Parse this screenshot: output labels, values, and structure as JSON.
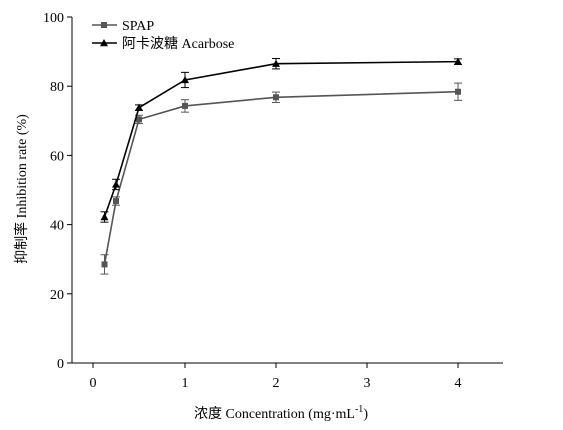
{
  "chart_data": {
    "type": "line",
    "xlabel": "浓度 Concentration (mg·mL",
    "xlabel_sup": "-1",
    "xlabel_close": ")",
    "ylabel": "抑制率 Inhibition rate (%)",
    "x_tick_labels": [
      "0",
      "1",
      "2",
      "3",
      "4"
    ],
    "y_ticks": [
      0,
      20,
      40,
      60,
      80,
      100
    ],
    "ylim": [
      0,
      100
    ],
    "x": [
      0.125,
      0.25,
      0.5,
      1,
      2,
      4
    ],
    "series": [
      {
        "name": "SPAP",
        "marker": "square",
        "color": "#555555",
        "values": [
          28.5,
          46.8,
          70.4,
          74.3,
          76.8,
          78.4
        ],
        "errors": [
          2.8,
          1.2,
          1.2,
          1.8,
          1.5,
          2.5
        ]
      },
      {
        "name": "阿卡波糖 Acarbose",
        "marker": "triangle",
        "color": "#000000",
        "values": [
          42.2,
          51.6,
          73.8,
          81.8,
          86.5,
          87.1
        ],
        "errors": [
          1.5,
          1.5,
          0.8,
          2.2,
          1.5,
          0.8
        ]
      }
    ],
    "legend_position": "top-left"
  }
}
